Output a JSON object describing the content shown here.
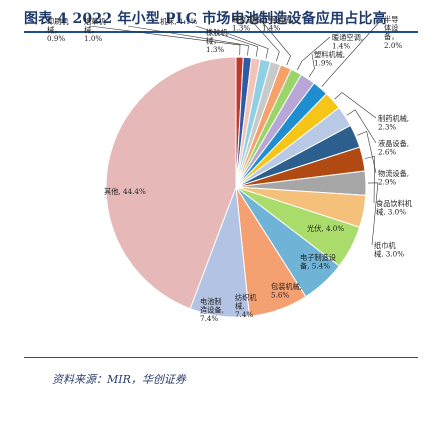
{
  "figure": {
    "title": "图表 4  2022 年小型 PLC 市场电池制造设备应用占比高",
    "source": "资料来源：MIR，华创证券"
  },
  "chart_data": {
    "type": "pie",
    "slices": [
      {
        "label": "印刷机械",
        "value": 0.9,
        "text": "0.9%",
        "color": "#c0392b"
      },
      {
        "label": "烟草机械",
        "value": 1.0,
        "text": "1.0%",
        "color": "#2e5aa8"
      },
      {
        "label": "机床",
        "value": 1.1,
        "text": "1.1%",
        "color": "#f4c3b8"
      },
      {
        "label": "橡胶机械",
        "value": 1.3,
        "text": "1.3%",
        "color": "#8fd0e4"
      },
      {
        "label": "起重机械",
        "value": 1.3,
        "text": "1.3%",
        "color": "#c9c9c9"
      },
      {
        "label": "工程机械",
        "value": 1.4,
        "text": "1.4%",
        "color": "#f6a06a"
      },
      {
        "label": "暖通空调",
        "value": 1.4,
        "text": "1.4%",
        "color": "#9bd469"
      },
      {
        "label": "塑料机械",
        "value": 1.9,
        "text": "1.9%",
        "color": "#b7a6d6"
      },
      {
        "label": "半导体设备",
        "value": 2.0,
        "text": "2.0%",
        "color": "#1f8ed0"
      },
      {
        "label": "制药机械",
        "value": 2.3,
        "text": "2.3%",
        "color": "#f5c518"
      },
      {
        "label": "液晶设备",
        "value": 2.6,
        "text": "2.6%",
        "color": "#b8c9e6"
      },
      {
        "label": "物流设备",
        "value": 2.9,
        "text": "2.9%",
        "color": "#2d5f8e"
      },
      {
        "label": "食品饮料机械",
        "value": 3.0,
        "text": "3.0%",
        "color": "#b04a12"
      },
      {
        "label": "纸巾机械",
        "value": 3.0,
        "text": "3.0%",
        "color": "#a6a6a6"
      },
      {
        "label": "光伏",
        "value": 4.0,
        "text": "4.0%",
        "color": "#f5c07a"
      },
      {
        "label": "电子制造设备",
        "value": 5.4,
        "text": "5.4%",
        "color": "#a9dc6a"
      },
      {
        "label": "包装机械",
        "value": 5.6,
        "text": "5.6%",
        "color": "#6fb3d6"
      },
      {
        "label": "纺织机械",
        "value": 7.4,
        "text": "7.4%",
        "color": "#f4a070"
      },
      {
        "label": "电池制造设备",
        "value": 7.4,
        "text": "7.4%",
        "color": "#b3c3e3"
      },
      {
        "label": "其他",
        "value": 44.4,
        "text": "44.4%",
        "color": "#e6b8b8"
      }
    ]
  }
}
